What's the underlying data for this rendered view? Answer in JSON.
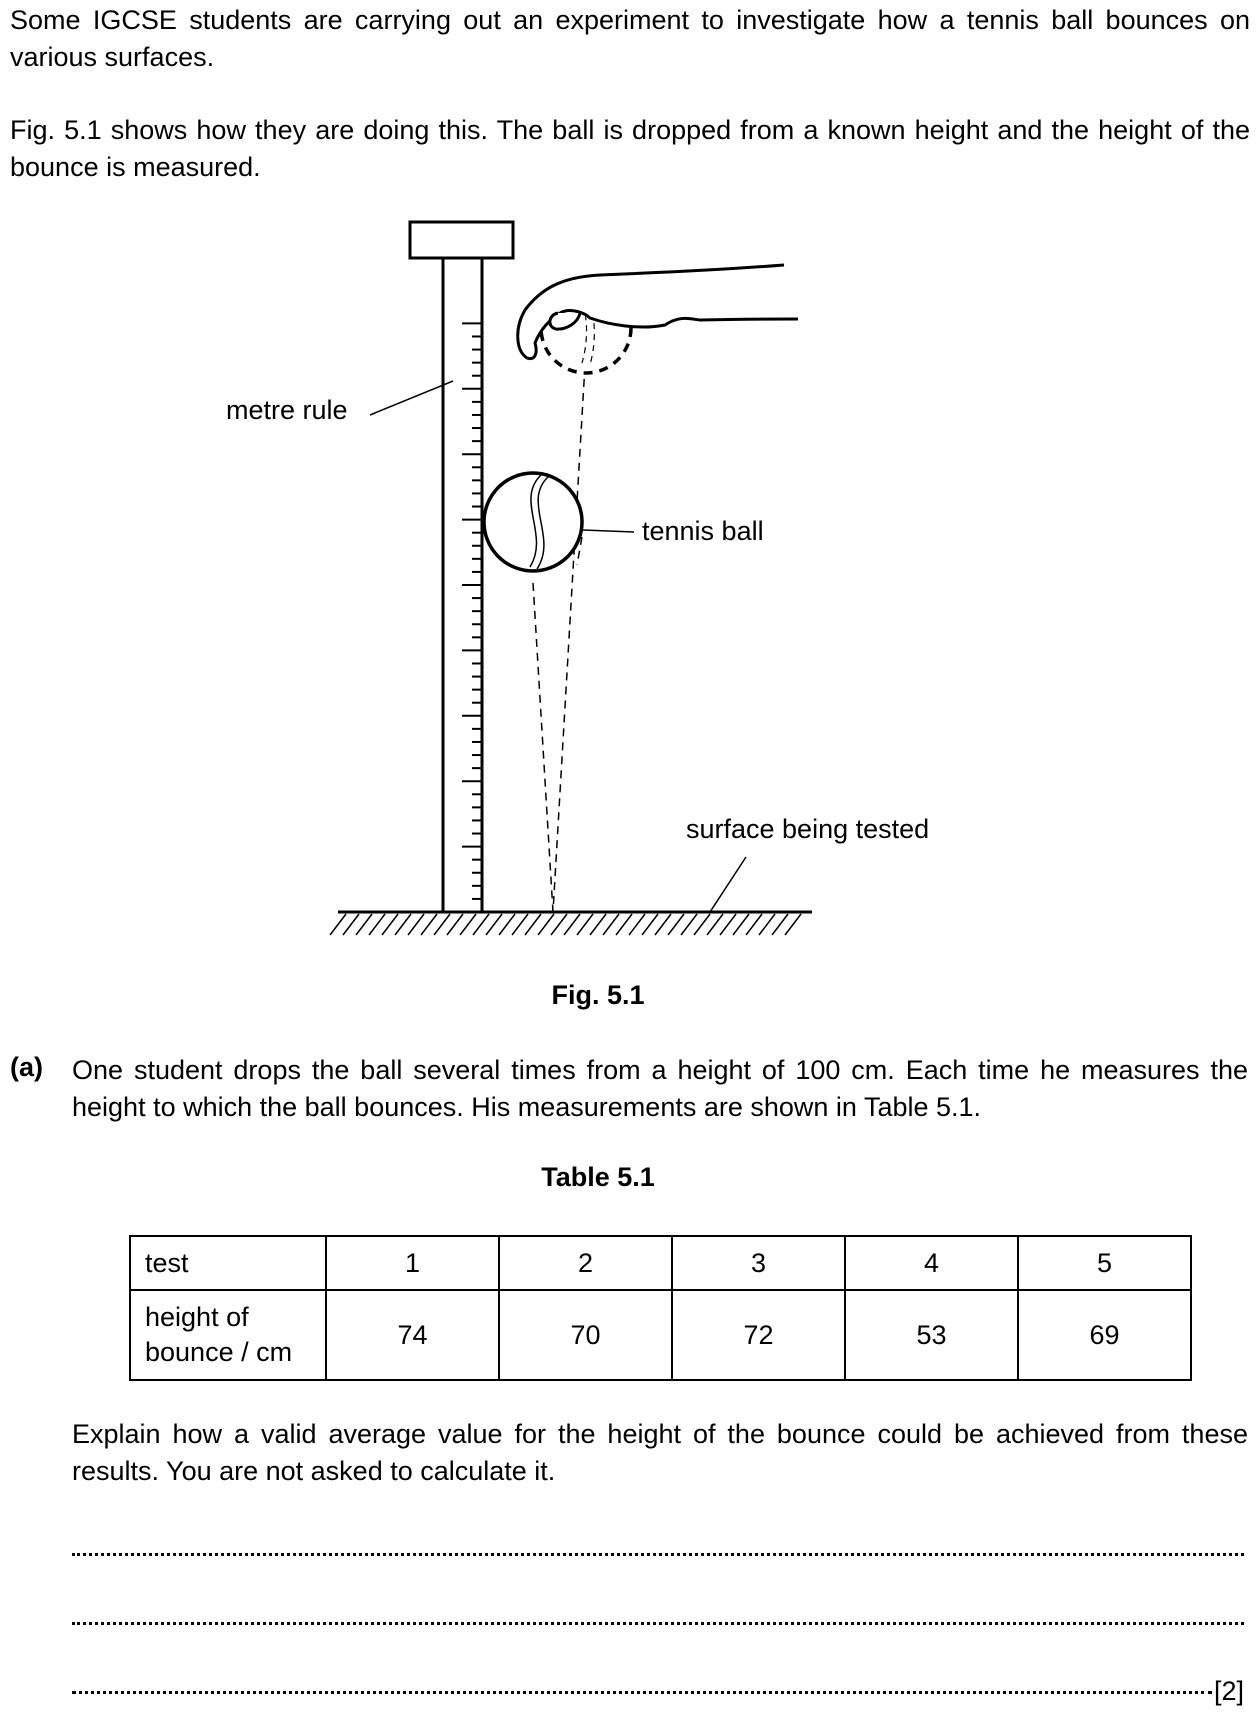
{
  "intro": {
    "p1": "Some IGCSE students are carrying out an experiment to investigate how a tennis ball bounces on various surfaces.",
    "p2": "Fig. 5.1 shows how they are doing this. The ball is dropped from a known height and the height of the bounce is measured."
  },
  "figure": {
    "labels": {
      "metre_rule": "metre rule",
      "tennis_ball": "tennis ball",
      "surface": "surface being tested"
    },
    "caption": "Fig. 5.1"
  },
  "question_a": {
    "marker": "(a)",
    "text": "One student drops the ball several times from a height of 100 cm. Each time he measures the height to which the ball bounces. His measurements are shown in Table 5.1."
  },
  "table": {
    "title": "Table 5.1",
    "row1_header": "test",
    "tests": [
      "1",
      "2",
      "3",
      "4",
      "5"
    ],
    "row2_header_line1": "height of",
    "row2_header_line2": "bounce / cm",
    "heights": [
      "74",
      "70",
      "72",
      "53",
      "69"
    ]
  },
  "explain": {
    "text": "Explain how a valid average value for the height of the bounce could be achieved from these results. You are not asked to calculate it."
  },
  "marks": "[2]"
}
